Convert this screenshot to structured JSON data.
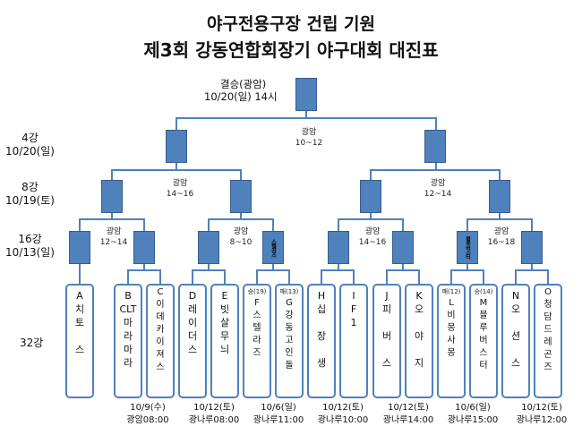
{
  "title": {
    "line1": "야구전용구장 건립 기원",
    "line2": "제3회 강동연합회장기 야구대회 대진표"
  },
  "final": {
    "label": "결승(광암)",
    "date": "10/20(일) 14시"
  },
  "rounds": {
    "r4": "4강\n10/20(일)",
    "r8": "8강\n10/19(토)",
    "r16": "16강\n10/13(일)",
    "r32": "32강"
  },
  "venues": {
    "semi": "광암\n10~12",
    "qf_left": "광암\n14~16",
    "qf_right": "광암\n12~14",
    "r16_1": "광암\n12~14",
    "r16_2": "광암\n8~10",
    "r16_3": "광암\n14~16",
    "r16_4": "광암\n16~18"
  },
  "r16_box_labels": {
    "box4": "스텔라즈",
    "box7": "블루버스터"
  },
  "teams": [
    {
      "pre": "",
      "name": "A\n치\n토\n\n스"
    },
    {
      "pre": "",
      "name": "B\nCLT\n마\n라\n마\n라"
    },
    {
      "pre": "",
      "name": "C\n이\n데\n카\n이\n져\n스"
    },
    {
      "pre": "",
      "name": "D\n레\n이\n더\n스"
    },
    {
      "pre": "",
      "name": "E\n빗\n살\n무\n늬"
    },
    {
      "pre": "승(19)",
      "name": "F\n스\n텔\n라\n즈"
    },
    {
      "pre": "패(13)",
      "name": "G\n강\n동\n고\n인\n돌"
    },
    {
      "pre": "",
      "name": "H\n십\n\n장\n\n생"
    },
    {
      "pre": "",
      "name": "I\nF\n1"
    },
    {
      "pre": "",
      "name": "J\n피\n\n버\n\n스"
    },
    {
      "pre": "",
      "name": "K\n오\n\n야\n\n지"
    },
    {
      "pre": "패(12)",
      "name": "L\n비\n몽\n사\n몽"
    },
    {
      "pre": "승(14)",
      "name": "M\n블\n루\n버\n스\n터"
    },
    {
      "pre": "",
      "name": "N\n오\n\n션\n\n스"
    },
    {
      "pre": "",
      "name": "O\n청\n담\n드\n레\n곤\n즈"
    }
  ],
  "schedule": [
    "10/9(수)\n광암08:00",
    "10/12(토)\n광나루08:00",
    "10/6(일)\n광나루11:00",
    "10/12(토)\n광나루10:00",
    "10/12(토)\n광나루14:00",
    "10/6(일)\n광나루15:00",
    "10/12(토)\n광나루12:00"
  ],
  "colors": {
    "box_fill": "#4f81bd",
    "box_border": "#385d8a",
    "line": "#4f81bd",
    "text": "#111111"
  }
}
